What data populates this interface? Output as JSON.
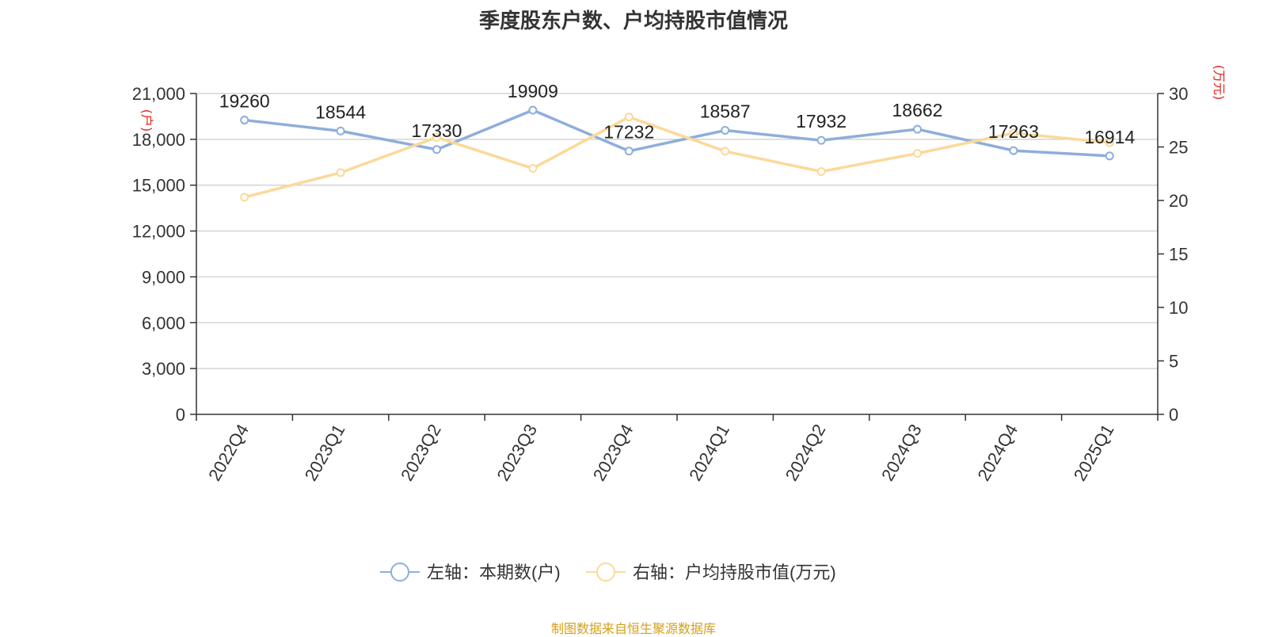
{
  "title": "季度股东户数、户均持股市值情况",
  "source": "制图数据来自恒生聚源数据库",
  "colors": {
    "series_left": "#8eaedb",
    "series_right": "#fcd999",
    "unit": "#e8211a",
    "source": "#d4a019",
    "axis": "#333333",
    "grid": "#cccccc"
  },
  "chart_data": {
    "type": "line",
    "title": "季度股东户数、户均持股市值情况",
    "categories": [
      "2022Q4",
      "2023Q1",
      "2023Q2",
      "2023Q3",
      "2023Q4",
      "2024Q1",
      "2024Q2",
      "2024Q3",
      "2024Q4",
      "2025Q1"
    ],
    "y_left": {
      "unit": "(户)",
      "ylim": [
        0,
        21000
      ],
      "ticks": [
        0,
        3000,
        6000,
        9000,
        12000,
        15000,
        18000,
        21000
      ],
      "tick_labels": [
        "0",
        "3,000",
        "6,000",
        "9,000",
        "12,000",
        "15,000",
        "18,000",
        "21,000"
      ]
    },
    "y_right": {
      "unit": "(万元)",
      "ylim": [
        0,
        30
      ],
      "ticks": [
        0,
        5,
        10,
        15,
        20,
        25,
        30
      ],
      "tick_labels": [
        "0",
        "5",
        "10",
        "15",
        "20",
        "25",
        "30"
      ]
    },
    "grid": true,
    "legend_position": "bottom-center",
    "series": [
      {
        "name": "左轴：本期数(户)",
        "axis": "left",
        "color": "#8eaedb",
        "values": [
          19260,
          18544,
          17330,
          19909,
          17232,
          18587,
          17932,
          18662,
          17263,
          16914
        ],
        "labels": [
          "19260",
          "18544",
          "17330",
          "19909",
          "17232",
          "18587",
          "17932",
          "18662",
          "17263",
          "16914"
        ]
      },
      {
        "name": "右轴：户均持股市值(万元)",
        "axis": "right",
        "color": "#fcd999",
        "values": [
          20.3,
          22.6,
          25.9,
          23.0,
          27.8,
          24.6,
          22.7,
          24.4,
          26.3,
          25.4
        ]
      }
    ]
  }
}
